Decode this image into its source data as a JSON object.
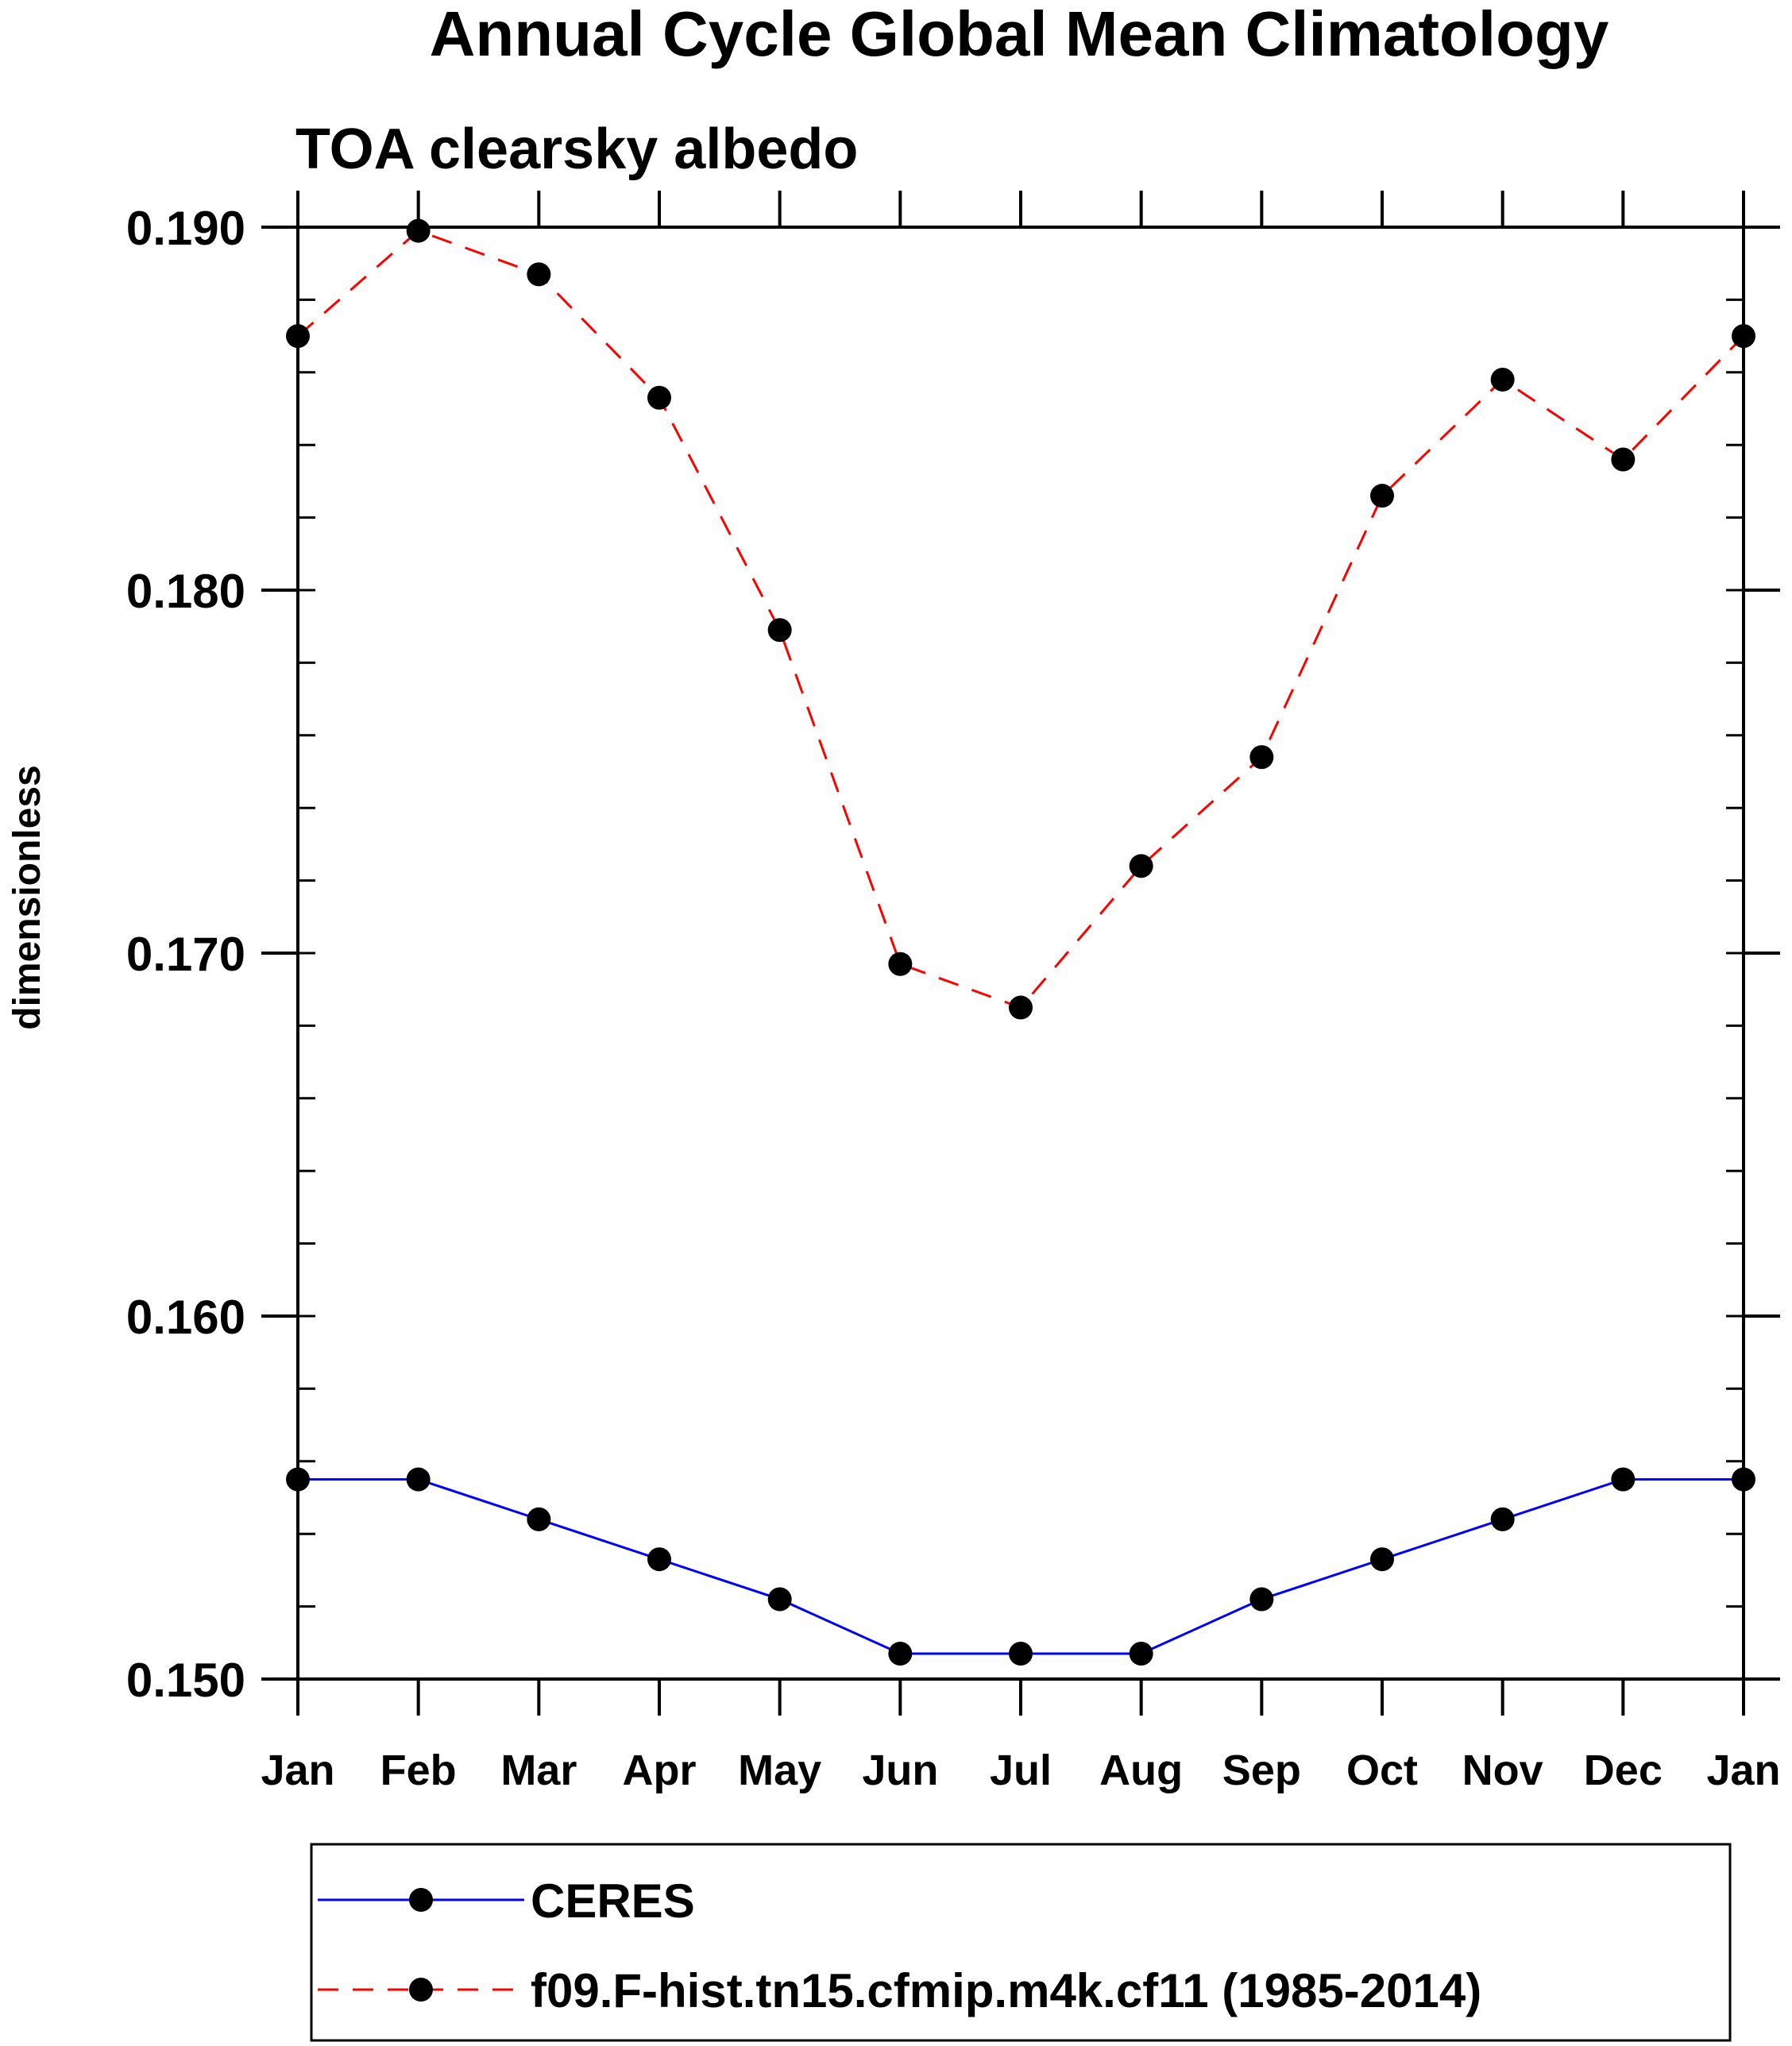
{
  "chart_data": {
    "type": "line",
    "title": "Annual Cycle Global Mean Climatology",
    "subtitle": "TOA clearsky albedo",
    "xlabel": "",
    "ylabel": "dimensionless",
    "categories": [
      "Jan",
      "Feb",
      "Mar",
      "Apr",
      "May",
      "Jun",
      "Jul",
      "Aug",
      "Sep",
      "Oct",
      "Nov",
      "Dec",
      "Jan"
    ],
    "ylim": [
      0.15,
      0.19
    ],
    "yticks": [
      0.15,
      0.16,
      0.17,
      0.18,
      0.19
    ],
    "ytick_labels": [
      "0.150",
      "0.160",
      "0.170",
      "0.180",
      "0.190"
    ],
    "y_minor_step": 0.002,
    "series": [
      {
        "name": "CERES",
        "color": "#0000ff",
        "dash": "solid",
        "values": [
          0.1555,
          0.1555,
          0.1544,
          0.1533,
          0.1522,
          0.1507,
          0.1507,
          0.1507,
          0.1522,
          0.1533,
          0.1544,
          0.1555,
          0.1555
        ]
      },
      {
        "name": "f09.F-hist.tn15.cfmip.m4k.cf11 (1985-2014)",
        "color": "#ff0000",
        "dash": "dashed",
        "values": [
          0.187,
          0.1899,
          0.1887,
          0.1853,
          0.1789,
          0.1697,
          0.1685,
          0.1724,
          0.1754,
          0.1826,
          0.1858,
          0.1836,
          0.187
        ]
      }
    ],
    "legend_position": "bottom"
  }
}
